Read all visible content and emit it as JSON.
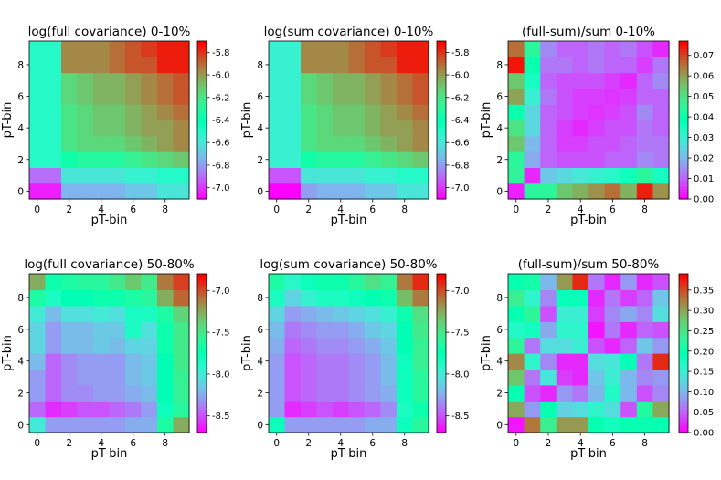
{
  "chart_data": [
    {
      "type": "heatmap",
      "title": "log(full covariance) 0-10%",
      "xlabel": "pT-bin",
      "ylabel": "pT-bin",
      "xticks": [
        "0",
        "2",
        "4",
        "6",
        "8"
      ],
      "yticks": [
        "0",
        "2",
        "4",
        "6",
        "8"
      ],
      "colorbar": {
        "min": -7.1,
        "max": -5.7,
        "ticks": [
          "-5.8",
          "-6.0",
          "-6.2",
          "-6.4",
          "-6.6",
          "-6.8",
          "-7.0"
        ],
        "colormap": "rainbow"
      },
      "z": [
        [
          -7.05,
          -7.05,
          -6.75,
          -6.75,
          -6.75,
          -6.75,
          -6.7,
          -6.7,
          -6.6,
          -6.6
        ],
        [
          -6.9,
          -6.9,
          -6.6,
          -6.6,
          -6.6,
          -6.6,
          -6.55,
          -6.55,
          -6.5,
          -6.5
        ],
        [
          -6.5,
          -6.5,
          -6.35,
          -6.3,
          -6.3,
          -6.3,
          -6.25,
          -6.2,
          -6.15,
          -6.1
        ],
        [
          -6.5,
          -6.5,
          -6.2,
          -6.15,
          -6.15,
          -6.15,
          -6.1,
          -6.05,
          -6.0,
          -5.95
        ],
        [
          -6.5,
          -6.5,
          -6.2,
          -6.15,
          -6.1,
          -6.1,
          -6.05,
          -6.0,
          -6.0,
          -5.95
        ],
        [
          -6.5,
          -6.5,
          -6.2,
          -6.15,
          -6.1,
          -6.1,
          -6.05,
          -6.0,
          -5.95,
          -5.9
        ],
        [
          -6.5,
          -6.5,
          -6.15,
          -6.1,
          -6.05,
          -6.05,
          -6.0,
          -5.95,
          -5.9,
          -5.85
        ],
        [
          -6.5,
          -6.5,
          -6.15,
          -6.1,
          -6.05,
          -6.05,
          -6.0,
          -5.95,
          -5.9,
          -5.85
        ],
        [
          -6.5,
          -6.5,
          -5.95,
          -5.95,
          -5.95,
          -5.9,
          -5.85,
          -5.85,
          -5.75,
          -5.75
        ],
        [
          -6.5,
          -6.5,
          -5.95,
          -5.95,
          -5.95,
          -5.9,
          -5.85,
          -5.8,
          -5.75,
          -5.75
        ]
      ]
    },
    {
      "type": "heatmap",
      "title": "log(sum covariance) 0-10%",
      "xlabel": "pT-bin",
      "ylabel": "pT-bin",
      "xticks": [
        "0",
        "2",
        "4",
        "6",
        "8"
      ],
      "yticks": [
        "0",
        "2",
        "4",
        "6",
        "8"
      ],
      "colorbar": {
        "min": -7.1,
        "max": -5.7,
        "ticks": [
          "-5.8",
          "-6.0",
          "-6.2",
          "-6.4",
          "-6.6",
          "-6.8",
          "-7.0"
        ],
        "colormap": "rainbow"
      },
      "z": [
        [
          -7.1,
          -7.1,
          -6.8,
          -6.75,
          -6.75,
          -6.75,
          -6.7,
          -6.7,
          -6.6,
          -6.6
        ],
        [
          -6.95,
          -6.95,
          -6.6,
          -6.6,
          -6.6,
          -6.6,
          -6.55,
          -6.55,
          -6.5,
          -6.5
        ],
        [
          -6.55,
          -6.55,
          -6.35,
          -6.3,
          -6.3,
          -6.3,
          -6.25,
          -6.2,
          -6.15,
          -6.1
        ],
        [
          -6.55,
          -6.55,
          -6.2,
          -6.15,
          -6.15,
          -6.15,
          -6.1,
          -6.05,
          -6.0,
          -5.95
        ],
        [
          -6.55,
          -6.55,
          -6.2,
          -6.15,
          -6.1,
          -6.1,
          -6.05,
          -6.0,
          -6.0,
          -5.95
        ],
        [
          -6.55,
          -6.55,
          -6.2,
          -6.15,
          -6.1,
          -6.1,
          -6.05,
          -6.0,
          -5.95,
          -5.9
        ],
        [
          -6.55,
          -6.55,
          -6.15,
          -6.1,
          -6.05,
          -6.05,
          -6.0,
          -5.95,
          -5.9,
          -5.85
        ],
        [
          -6.55,
          -6.55,
          -6.15,
          -6.1,
          -6.05,
          -6.05,
          -6.0,
          -5.95,
          -5.9,
          -5.85
        ],
        [
          -6.55,
          -6.55,
          -5.95,
          -5.95,
          -5.95,
          -5.9,
          -5.85,
          -5.85,
          -5.75,
          -5.75
        ],
        [
          -6.55,
          -6.55,
          -5.95,
          -5.95,
          -5.95,
          -5.9,
          -5.85,
          -5.8,
          -5.75,
          -5.75
        ]
      ]
    },
    {
      "type": "heatmap",
      "title": "(full-sum)/sum 0-10%",
      "xlabel": "pT-bin",
      "ylabel": "pT-bin",
      "xticks": [
        "0",
        "2",
        "4",
        "6",
        "8"
      ],
      "yticks": [
        "0",
        "2",
        "4",
        "6",
        "8"
      ],
      "colorbar": {
        "min": 0.0,
        "max": 0.077,
        "ticks": [
          "0.00",
          "0.01",
          "0.02",
          "0.03",
          "0.04",
          "0.05",
          "0.06",
          "0.07"
        ],
        "colormap": "rainbow"
      },
      "z": [
        [
          0.003,
          0.045,
          0.045,
          0.055,
          0.058,
          0.062,
          0.066,
          0.058,
          0.074,
          0.062
        ],
        [
          0.046,
          0.004,
          0.022,
          0.025,
          0.028,
          0.03,
          0.032,
          0.036,
          0.045,
          0.035
        ],
        [
          0.045,
          0.018,
          0.01,
          0.008,
          0.008,
          0.008,
          0.01,
          0.01,
          0.014,
          0.012
        ],
        [
          0.055,
          0.02,
          0.01,
          0.006,
          0.006,
          0.008,
          0.008,
          0.01,
          0.012,
          0.012
        ],
        [
          0.05,
          0.025,
          0.01,
          0.006,
          0.004,
          0.006,
          0.008,
          0.008,
          0.012,
          0.01
        ],
        [
          0.04,
          0.025,
          0.01,
          0.008,
          0.006,
          0.005,
          0.006,
          0.008,
          0.014,
          0.01
        ],
        [
          0.06,
          0.03,
          0.012,
          0.008,
          0.006,
          0.006,
          0.005,
          0.006,
          0.01,
          0.01
        ],
        [
          0.055,
          0.035,
          0.01,
          0.008,
          0.008,
          0.008,
          0.006,
          0.004,
          0.01,
          0.014
        ],
        [
          0.075,
          0.04,
          0.012,
          0.012,
          0.01,
          0.012,
          0.01,
          0.01,
          0.006,
          0.012
        ],
        [
          0.066,
          0.045,
          0.014,
          0.01,
          0.01,
          0.012,
          0.01,
          0.012,
          0.008,
          0.004
        ]
      ]
    },
    {
      "type": "heatmap",
      "title": "log(full covariance) 50-80%",
      "xlabel": "pT-bin",
      "ylabel": "pT-bin",
      "xticks": [
        "0",
        "2",
        "4",
        "6",
        "8"
      ],
      "yticks": [
        "0",
        "2",
        "4",
        "6",
        "8"
      ],
      "colorbar": {
        "min": -8.7,
        "max": -6.8,
        "ticks": [
          "-7.0",
          "-7.5",
          "-8.0",
          "-8.5"
        ],
        "colormap": "rainbow"
      },
      "z": [
        [
          -8.0,
          -8.3,
          -8.3,
          -8.3,
          -8.3,
          -8.3,
          -8.25,
          -8.25,
          -7.65,
          -7.25
        ],
        [
          -8.45,
          -8.6,
          -8.55,
          -8.5,
          -8.5,
          -8.45,
          -8.4,
          -8.3,
          -7.8,
          -7.6
        ],
        [
          -8.3,
          -8.45,
          -8.35,
          -8.35,
          -8.3,
          -8.3,
          -8.25,
          -8.2,
          -7.75,
          -7.55
        ],
        [
          -8.3,
          -8.45,
          -8.35,
          -8.3,
          -8.3,
          -8.3,
          -8.2,
          -8.15,
          -7.75,
          -7.55
        ],
        [
          -8.2,
          -8.45,
          -8.35,
          -8.3,
          -8.3,
          -8.3,
          -8.2,
          -8.15,
          -7.75,
          -7.5
        ],
        [
          -8.1,
          -8.3,
          -8.2,
          -8.2,
          -8.15,
          -8.2,
          -8.1,
          -8.1,
          -7.7,
          -7.5
        ],
        [
          -8.1,
          -8.3,
          -8.2,
          -8.2,
          -8.15,
          -8.15,
          -7.85,
          -8.05,
          -7.7,
          -7.5
        ],
        [
          -8.0,
          -8.2,
          -8.05,
          -8.05,
          -8.0,
          -8.05,
          -7.85,
          -7.85,
          -7.65,
          -7.4
        ],
        [
          -7.65,
          -7.85,
          -7.75,
          -7.75,
          -7.7,
          -7.7,
          -7.65,
          -7.6,
          -7.25,
          -7.05
        ],
        [
          -7.25,
          -7.7,
          -7.65,
          -7.6,
          -7.6,
          -7.5,
          -7.35,
          -7.5,
          -7.1,
          -6.95
        ]
      ]
    },
    {
      "type": "heatmap",
      "title": "log(sum covariance) 50-80%",
      "xlabel": "pT-bin",
      "ylabel": "pT-bin",
      "xticks": [
        "0",
        "2",
        "4",
        "6",
        "8"
      ],
      "yticks": [
        "0",
        "2",
        "4",
        "6",
        "8"
      ],
      "colorbar": {
        "min": -8.7,
        "max": -6.8,
        "ticks": [
          "-7.0",
          "-7.5",
          "-8.0",
          "-8.5"
        ],
        "colormap": "rainbow"
      },
      "z": [
        [
          -7.8,
          -8.3,
          -8.3,
          -8.3,
          -8.3,
          -8.3,
          -8.25,
          -8.25,
          -7.8,
          -7.6
        ],
        [
          -8.3,
          -8.6,
          -8.55,
          -8.5,
          -8.55,
          -8.5,
          -8.45,
          -8.35,
          -7.85,
          -7.7
        ],
        [
          -8.3,
          -8.5,
          -8.45,
          -8.4,
          -8.4,
          -8.35,
          -8.3,
          -8.25,
          -7.8,
          -7.6
        ],
        [
          -8.3,
          -8.5,
          -8.45,
          -8.4,
          -8.4,
          -8.35,
          -8.3,
          -8.2,
          -7.8,
          -7.6
        ],
        [
          -8.3,
          -8.5,
          -8.45,
          -8.4,
          -8.4,
          -8.35,
          -8.3,
          -8.2,
          -7.8,
          -7.55
        ],
        [
          -8.25,
          -8.45,
          -8.4,
          -8.35,
          -8.35,
          -8.3,
          -8.25,
          -8.15,
          -7.75,
          -7.55
        ],
        [
          -8.2,
          -8.4,
          -8.35,
          -8.3,
          -8.3,
          -8.25,
          -8.15,
          -8.1,
          -7.75,
          -7.5
        ],
        [
          -8.1,
          -8.3,
          -8.25,
          -8.2,
          -8.15,
          -8.1,
          -8.05,
          -7.95,
          -7.7,
          -7.45
        ],
        [
          -7.85,
          -8.1,
          -7.95,
          -7.85,
          -7.85,
          -7.8,
          -7.75,
          -7.7,
          -7.3,
          -7.1
        ],
        [
          -7.65,
          -7.9,
          -7.8,
          -7.7,
          -7.7,
          -7.6,
          -7.45,
          -7.55,
          -7.1,
          -6.9
        ]
      ]
    },
    {
      "type": "heatmap",
      "title": "(full-sum)/sum 50-80%",
      "xlabel": "pT-bin",
      "ylabel": "pT-bin",
      "xticks": [
        "0",
        "2",
        "4",
        "6",
        "8"
      ],
      "yticks": [
        "0",
        "2",
        "4",
        "6",
        "8"
      ],
      "colorbar": {
        "min": 0.0,
        "max": 0.39,
        "ticks": [
          "0.00",
          "0.05",
          "0.10",
          "0.15",
          "0.20",
          "0.25",
          "0.30",
          "0.35"
        ],
        "colormap": "rainbow"
      },
      "z": [
        [
          0.01,
          0.33,
          0.24,
          0.31,
          0.31,
          0.2,
          0.18,
          0.2,
          0.2,
          0.2
        ],
        [
          0.3,
          0.08,
          0.2,
          0.12,
          0.13,
          0.16,
          0.13,
          0.04,
          0.22,
          0.3
        ],
        [
          0.2,
          0.04,
          0.02,
          0.08,
          0.06,
          0.1,
          0.17,
          0.1,
          0.04,
          0.07
        ],
        [
          0.28,
          0.06,
          0.14,
          0.03,
          0.02,
          0.11,
          0.15,
          0.1,
          0.07,
          0.08
        ],
        [
          0.32,
          0.16,
          0.07,
          0.02,
          0.02,
          0.13,
          0.14,
          0.19,
          0.06,
          0.37
        ],
        [
          0.23,
          0.06,
          0.13,
          0.13,
          0.15,
          0.04,
          0.02,
          0.05,
          0.11,
          0.08
        ],
        [
          0.17,
          0.18,
          0.09,
          0.16,
          0.16,
          0.01,
          0.06,
          0.02,
          0.05,
          0.04
        ],
        [
          0.2,
          0.23,
          0.04,
          0.15,
          0.15,
          0.03,
          0.07,
          0.09,
          0.07,
          0.13
        ],
        [
          0.24,
          0.16,
          0.07,
          0.19,
          0.19,
          0.02,
          0.06,
          0.03,
          0.05,
          0.11
        ],
        [
          0.2,
          0.21,
          0.1,
          0.31,
          0.37,
          0.06,
          0.02,
          0.08,
          0.02,
          0.04
        ]
      ]
    }
  ]
}
